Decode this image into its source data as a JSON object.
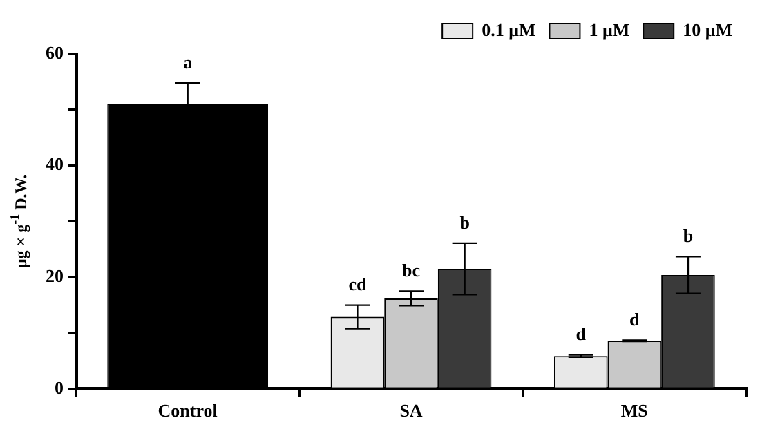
{
  "chart_data": {
    "type": "bar",
    "ylabel": "μg × g$^{-1}$ D.W.",
    "categories": [
      "Control",
      "SA",
      "MS"
    ],
    "series": [
      {
        "color": "#000000",
        "values": [
          51.1,
          null,
          null
        ],
        "errors": [
          3.7,
          null,
          null
        ]
      },
      {
        "name": "0.1 μM",
        "color": "#e8e8e8",
        "values": [
          null,
          12.9,
          5.9
        ],
        "errors": [
          null,
          2.1,
          0.2
        ]
      },
      {
        "name": "1 μM",
        "color": "#c8c8c8",
        "values": [
          null,
          16.2,
          8.6
        ],
        "errors": [
          null,
          1.3,
          0.1
        ]
      },
      {
        "name": "10 μM",
        "color": "#3a3a3a",
        "values": [
          null,
          21.5,
          20.4
        ],
        "errors": [
          null,
          4.6,
          3.3
        ]
      }
    ],
    "annotations": [
      "a",
      "cd",
      "bc",
      "b",
      "d",
      "d",
      "b"
    ],
    "ylim": [
      0,
      60
    ],
    "yticks": [
      0,
      {
        "value": 10,
        "label": null
      },
      20,
      {
        "value": 30,
        "label": null
      },
      40,
      {
        "value": 50,
        "label": null
      },
      60
    ],
    "grid": false,
    "legend": "top right"
  }
}
